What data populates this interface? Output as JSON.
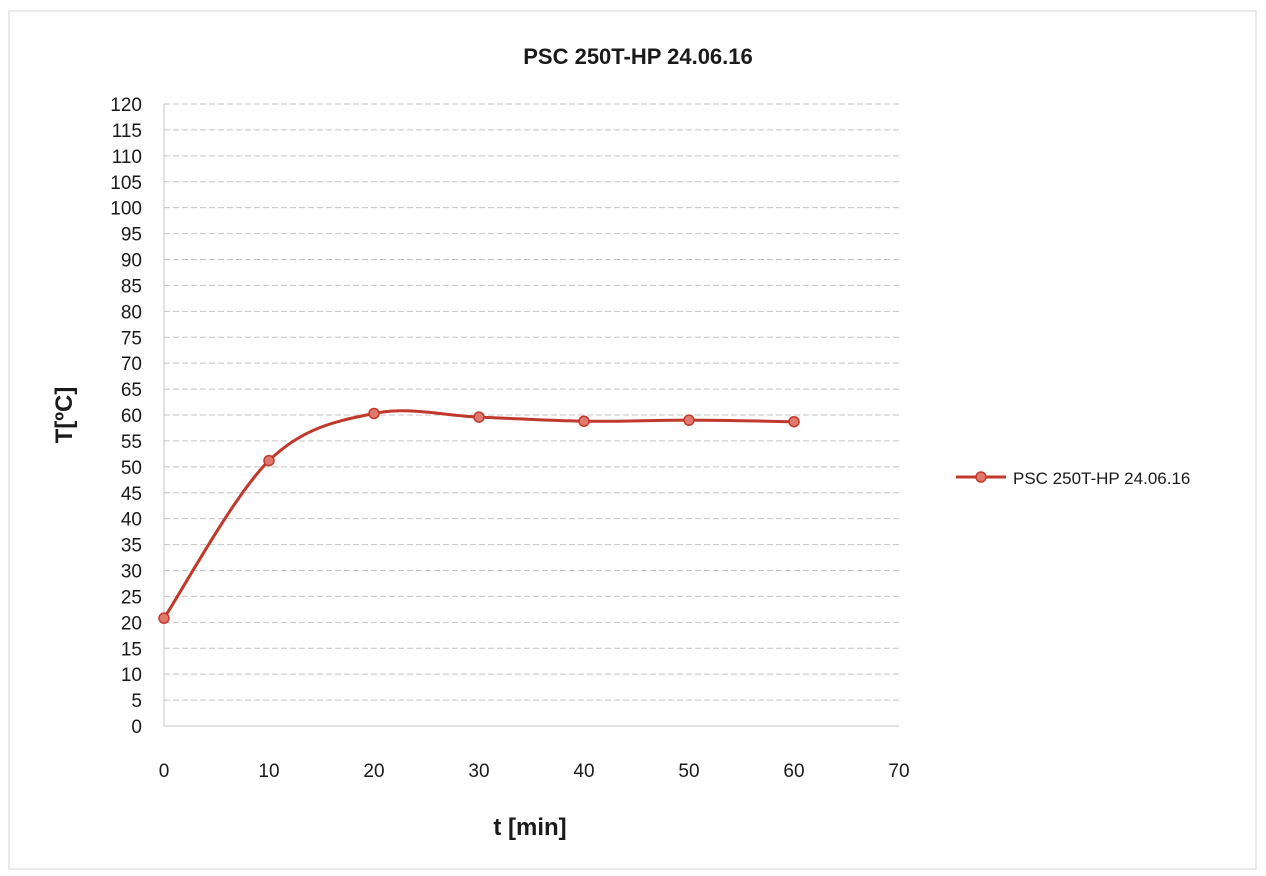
{
  "chart_data": {
    "type": "line",
    "title": "PSC 250T-HP 24.06.16",
    "xlabel": "t [min]",
    "ylabel": "T[ºC]",
    "xlim": [
      0,
      70
    ],
    "ylim": [
      0,
      120
    ],
    "x_ticks": [
      0,
      10,
      20,
      30,
      40,
      50,
      60,
      70
    ],
    "y_ticks": [
      0,
      5,
      10,
      15,
      20,
      25,
      30,
      35,
      40,
      45,
      50,
      55,
      60,
      65,
      70,
      75,
      80,
      85,
      90,
      95,
      100,
      105,
      110,
      115,
      120
    ],
    "grid": "horizontal",
    "smooth": true,
    "legend_position": "right",
    "series": [
      {
        "name": "PSC 250T-HP 24.06.16",
        "color": "#c0392b",
        "points": [
          {
            "x": 0,
            "y": 20.8
          },
          {
            "x": 10,
            "y": 51.2
          },
          {
            "x": 20,
            "y": 60.3
          },
          {
            "x": 30,
            "y": 59.6
          },
          {
            "x": 40,
            "y": 58.8
          },
          {
            "x": 50,
            "y": 59.0
          },
          {
            "x": 60,
            "y": 58.7
          }
        ]
      }
    ]
  }
}
